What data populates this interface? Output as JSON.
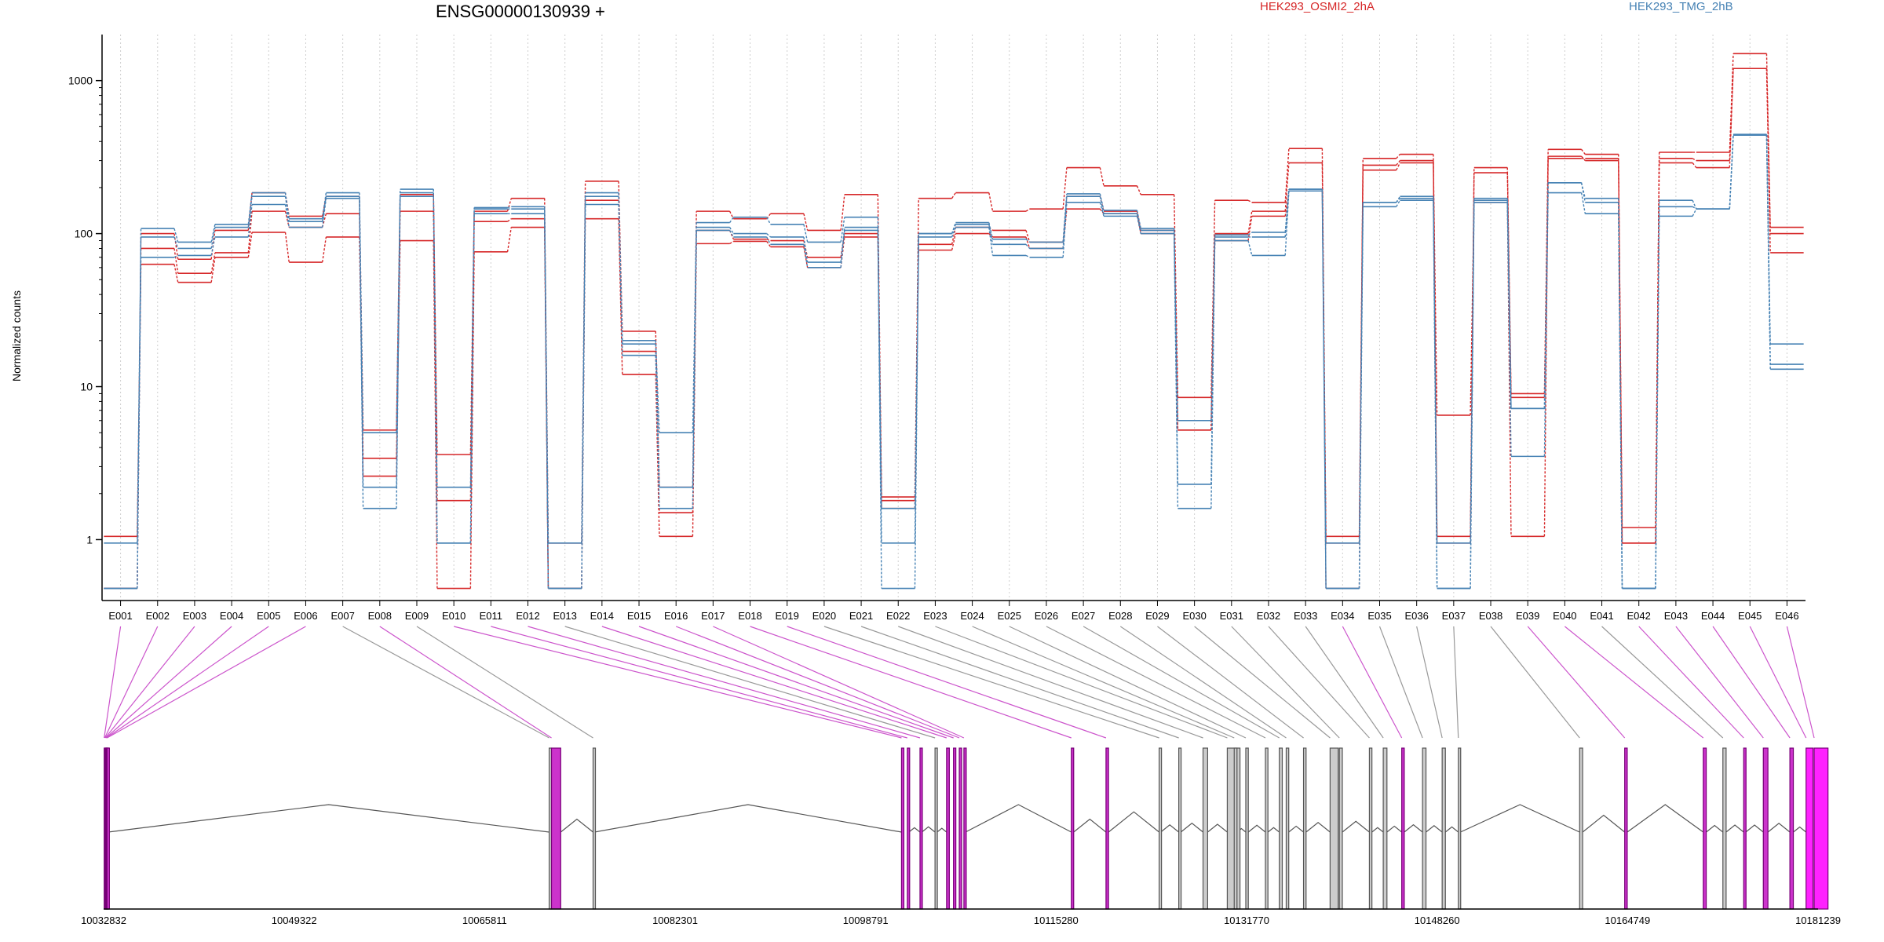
{
  "chart_data": {
    "type": "line",
    "title": "ENSG00000130939 +",
    "ylabel": "Normalized counts",
    "xlabel": "",
    "yscale": "log",
    "ylim": [
      0.4,
      2000
    ],
    "yticks": [
      1,
      10,
      100,
      1000
    ],
    "ytick_labels": [
      "1",
      "10",
      "100",
      "1000"
    ],
    "grid": "vertical dotted lines per exon",
    "legend_placement": "top",
    "categories": [
      "E001",
      "E002",
      "E003",
      "E004",
      "E005",
      "E006",
      "E007",
      "E008",
      "E009",
      "E010",
      "E011",
      "E012",
      "E013",
      "E014",
      "E015",
      "E016",
      "E017",
      "E018",
      "E019",
      "E020",
      "E021",
      "E022",
      "E023",
      "E024",
      "E025",
      "E026",
      "E027",
      "E028",
      "E029",
      "E030",
      "E031",
      "E032",
      "E033",
      "E034",
      "E035",
      "E036",
      "E037",
      "E038",
      "E039",
      "E040",
      "E041",
      "E042",
      "E043",
      "E044",
      "E045",
      "E046"
    ],
    "series": [
      {
        "name": "HEK293_OSMI2_2hA",
        "color": "#d62728",
        "group": "OSMI2",
        "values": [
          1.05,
          63,
          48,
          70,
          102,
          65,
          95,
          3.4,
          90,
          0.48,
          76,
          110,
          0.48,
          125,
          12,
          1.05,
          86,
          89,
          82,
          60,
          95,
          1.8,
          78,
          100,
          95,
          80,
          145,
          135,
          100,
          5.2,
          90,
          130,
          190,
          1.05,
          260,
          290,
          6.5,
          160,
          1.05,
          320,
          300,
          0.95,
          290,
          270,
          1200,
          75
        ]
      },
      {
        "name": "HEK293_OSMI2_2hA",
        "color": "#d62728",
        "group": "OSMI2",
        "values": [
          0.48,
          80,
          55,
          75,
          140,
          110,
          135,
          2.6,
          140,
          1.8,
          120,
          125,
          0.48,
          165,
          17,
          1.5,
          105,
          92,
          90,
          70,
          100,
          1.6,
          85,
          110,
          105,
          88,
          175,
          140,
          105,
          5.2,
          100,
          140,
          290,
          0.48,
          280,
          300,
          0.95,
          250,
          8.5,
          310,
          310,
          1.2,
          310,
          300,
          1200,
          100
        ]
      },
      {
        "name": "HEK293_OSMI2_2hA",
        "color": "#d62728",
        "group": "OSMI2",
        "values": [
          0.48,
          100,
          68,
          105,
          185,
          130,
          175,
          5.2,
          180,
          3.6,
          140,
          170,
          0.95,
          220,
          23,
          2.2,
          140,
          125,
          135,
          105,
          180,
          1.9,
          170,
          185,
          140,
          145,
          270,
          205,
          180,
          8.5,
          165,
          160,
          360,
          0.95,
          310,
          330,
          1.05,
          270,
          9.0,
          355,
          330,
          0.95,
          340,
          340,
          1500,
          110
        ]
      },
      {
        "name": "HEK293_TMG_2hB",
        "color": "#4682b4",
        "group": "TMG",
        "values": [
          0.48,
          70,
          72,
          95,
          155,
          110,
          170,
          1.6,
          175,
          0.95,
          135,
          135,
          0.48,
          155,
          16,
          1.6,
          105,
          95,
          85,
          60,
          105,
          0.48,
          95,
          110,
          72,
          70,
          160,
          130,
          100,
          1.6,
          90,
          72,
          190,
          0.48,
          150,
          165,
          0.48,
          160,
          3.5,
          185,
          135,
          0.48,
          130,
          145,
          440,
          13
        ]
      },
      {
        "name": "HEK293_TMG_2hB",
        "color": "#4682b4",
        "group": "TMG",
        "values": [
          0.95,
          95,
          80,
          110,
          175,
          120,
          175,
          2.2,
          185,
          2.2,
          145,
          145,
          0.48,
          175,
          19,
          2.2,
          110,
          100,
          95,
          65,
          110,
          1.6,
          100,
          115,
          85,
          80,
          175,
          135,
          105,
          2.3,
          95,
          95,
          195,
          0.95,
          160,
          170,
          0.95,
          165,
          7.2,
          215,
          160,
          0.48,
          150,
          145,
          440,
          14
        ]
      },
      {
        "name": "HEK293_TMG_2hB",
        "color": "#4682b4",
        "group": "TMG",
        "values": [
          0.48,
          108,
          88,
          115,
          185,
          125,
          185,
          5.0,
          195,
          0.95,
          148,
          150,
          0.95,
          185,
          20,
          5.0,
          118,
          128,
          115,
          88,
          128,
          0.95,
          100,
          118,
          92,
          88,
          182,
          142,
          108,
          6.0,
          98,
          102,
          195,
          0.48,
          160,
          175,
          0.48,
          170,
          7.2,
          215,
          170,
          0.48,
          165,
          145,
          445,
          19
        ]
      }
    ],
    "legend": [
      {
        "label": "HEK293_OSMI2_2hA",
        "color": "#d62728"
      },
      {
        "label": "HEK293_TMG_2hB",
        "color": "#4682b4"
      }
    ],
    "genomic_axis": {
      "min": 10032832,
      "max": 10181239,
      "tick_labels": [
        "10032832",
        "10049322",
        "10065811",
        "10082301",
        "10098791",
        "10115280",
        "10131770",
        "10148260",
        "10164749",
        "10181239"
      ]
    },
    "exon_highlight_colors": {
      "significant": "#cc00cc",
      "normal": "#888888"
    }
  }
}
